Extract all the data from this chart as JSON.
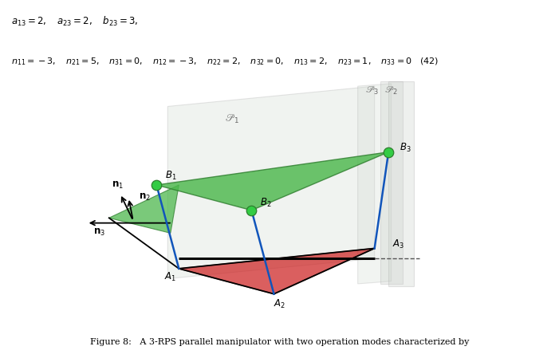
{
  "eq_line1": "$a_{13} = 2, \\quad a_{23} = 2, \\quad b_{23} = 3,$",
  "eq_line2": "$n_{11} = -3, \\quad n_{21} = 5, \\quad n_{31} = 0, \\quad n_{12} = -3, \\quad n_{22} = 2, \\quad n_{32} = 0, \\quad n_{13} = 2, \\quad n_{23} = 1, \\quad n_{33} = 0 \\quad (42)$",
  "caption": "Figure 8:   A 3-RPS parallel manipulator with two operation modes characterized by",
  "bg_color": "#ffffff",
  "green_color": "#4db84d",
  "green_dark": "#2e7d2e",
  "red_color": "#cc2222",
  "red_dark": "#881111",
  "blue_color": "#1155bb",
  "plane_face": "#d0d8d0",
  "plane_edge": "#aaaaaa",
  "node_color": "#33cc44"
}
